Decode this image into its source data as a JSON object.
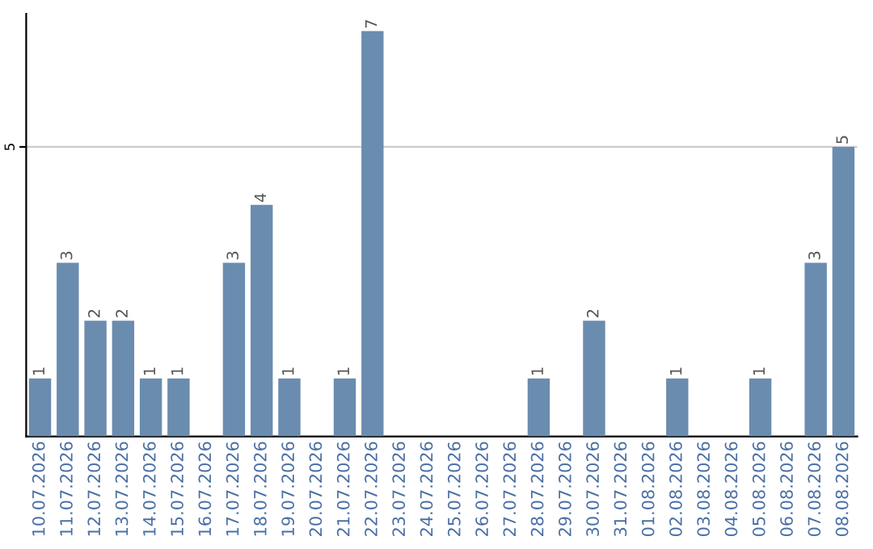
{
  "chart_data": {
    "type": "bar",
    "categories": [
      "10.07.2026",
      "11.07.2026",
      "12.07.2026",
      "13.07.2026",
      "14.07.2026",
      "15.07.2026",
      "16.07.2026",
      "17.07.2026",
      "18.07.2026",
      "19.07.2026",
      "20.07.2026",
      "21.07.2026",
      "22.07.2026",
      "23.07.2026",
      "24.07.2026",
      "25.07.2026",
      "26.07.2026",
      "27.07.2026",
      "28.07.2026",
      "29.07.2026",
      "30.07.2026",
      "31.07.2026",
      "01.08.2026",
      "02.08.2026",
      "03.08.2026",
      "04.08.2026",
      "05.08.2026",
      "06.08.2026",
      "07.08.2026",
      "08.08.2026"
    ],
    "values": [
      1,
      3,
      2,
      2,
      1,
      1,
      0,
      3,
      4,
      1,
      0,
      1,
      7,
      0,
      0,
      0,
      0,
      0,
      1,
      0,
      2,
      0,
      0,
      1,
      0,
      0,
      1,
      0,
      3,
      5
    ],
    "value_labels": [
      "1",
      "3",
      "2",
      "2",
      "1",
      "1",
      null,
      "3",
      "4",
      "1",
      null,
      "1",
      "7",
      null,
      null,
      null,
      null,
      null,
      "1",
      null,
      "2",
      null,
      null,
      "1",
      null,
      null,
      "1",
      null,
      "3",
      "5"
    ],
    "color": "#6a8caf",
    "ylim": [
      0,
      7.3
    ],
    "yticks": [
      5
    ],
    "grid": "y"
  }
}
